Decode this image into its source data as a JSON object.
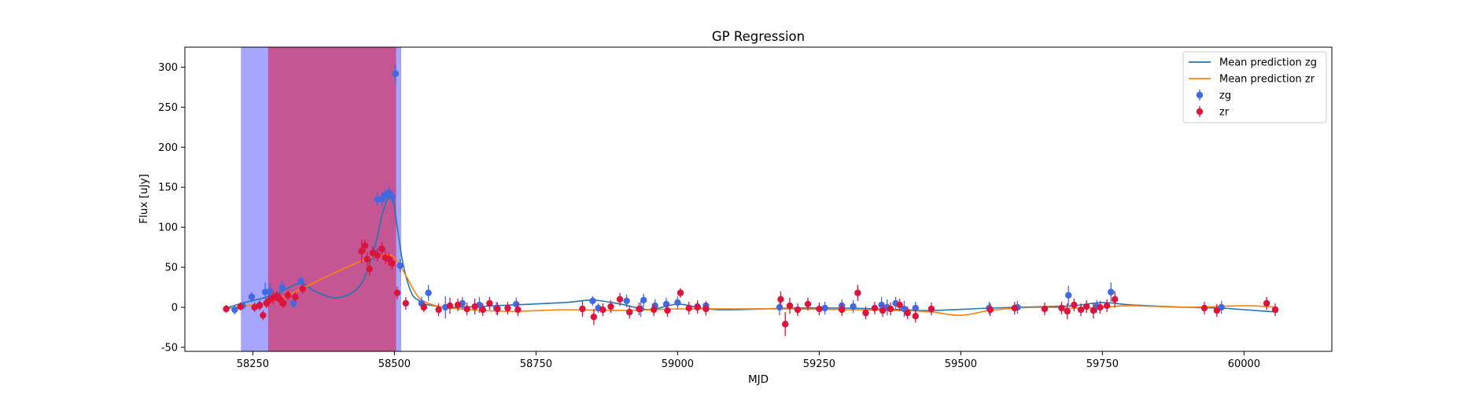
{
  "chart_data": {
    "type": "scatter",
    "title": "GP Regression",
    "xlabel": "MJD",
    "ylabel": "Flux [uJy]",
    "xlim": [
      58130,
      60155
    ],
    "ylim": [
      -55,
      325
    ],
    "xticks": [
      58250,
      58500,
      58750,
      59000,
      59250,
      59500,
      59750,
      60000
    ],
    "yticks": [
      -50,
      0,
      50,
      100,
      150,
      200,
      250,
      300
    ],
    "legend_position": "top-right",
    "spans": [
      {
        "band": "zg",
        "x": [
          58229,
          58512
        ],
        "color": "#0000ff",
        "opacity": 0.35
      },
      {
        "band": "zr",
        "x": [
          58277,
          58503
        ],
        "color": "#dc143c",
        "opacity": 0.55
      }
    ],
    "series": [
      {
        "name": "Mean prediction zg",
        "kind": "line",
        "color": "#1f77b4",
        "x": [
          58200,
          58230,
          58270,
          58300,
          58335,
          58360,
          58400,
          58440,
          58465,
          58480,
          58495,
          58505,
          58515,
          58530,
          58545,
          58560,
          58600,
          58680,
          58800,
          58850,
          58900,
          58950,
          59000,
          59050,
          59100,
          59200,
          59300,
          59400,
          59450,
          59550,
          59650,
          59700,
          59750,
          59800,
          59900,
          59960,
          60000,
          60060
        ],
        "y": [
          -2,
          5,
          12,
          20,
          30,
          20,
          12,
          28,
          75,
          120,
          140,
          100,
          55,
          18,
          8,
          3,
          0,
          2,
          6,
          9,
          4,
          -3,
          4,
          -2,
          -3,
          -1,
          -1,
          -3,
          -4,
          -1,
          1,
          2,
          6,
          3,
          0,
          -1,
          -3,
          -6
        ]
      },
      {
        "name": "Mean prediction zr",
        "kind": "line",
        "color": "#ff7f0e",
        "x": [
          58200,
          58250,
          58300,
          58350,
          58400,
          58450,
          58480,
          58500,
          58520,
          58540,
          58560,
          58600,
          58700,
          58800,
          58900,
          59000,
          59100,
          59200,
          59300,
          59400,
          59450,
          59500,
          59550,
          59600,
          59650,
          59700,
          59750,
          59800,
          59900,
          60000,
          60060
        ],
        "y": [
          -2,
          3,
          12,
          28,
          45,
          60,
          66,
          62,
          40,
          15,
          5,
          -1,
          -5,
          -3,
          -4,
          -2,
          -2,
          -2,
          -3,
          -4,
          -6,
          -10,
          -4,
          -1,
          0,
          -1,
          0,
          2,
          0,
          2,
          0
        ]
      },
      {
        "name": "zg",
        "kind": "errorbar",
        "color": "#4169e1",
        "x": [
          58218,
          58232,
          58248,
          58262,
          58272,
          58280,
          58302,
          58322,
          58335,
          58465,
          58470,
          58478,
          58483,
          58490,
          58496,
          58502,
          58510,
          58548,
          58560,
          58590,
          58620,
          58650,
          58680,
          58715,
          58850,
          58860,
          58910,
          58935,
          58940,
          58960,
          58980,
          59000,
          59035,
          59050,
          59180,
          59260,
          59290,
          59310,
          59360,
          59370,
          59385,
          59400,
          59420,
          59550,
          59600,
          59690,
          59740,
          59765,
          59960
        ],
        "y": [
          -3,
          2,
          13,
          3,
          19,
          20,
          25,
          5,
          33,
          68,
          135,
          135,
          140,
          143,
          138,
          292,
          52,
          5,
          18,
          0,
          5,
          3,
          -1,
          4,
          8,
          -1,
          8,
          -2,
          9,
          2,
          4,
          6,
          1,
          2,
          0,
          -1,
          2,
          1,
          3,
          0,
          5,
          -2,
          -1,
          -1,
          0,
          15,
          1,
          19,
          0
        ],
        "yerr": [
          6,
          5,
          6,
          6,
          12,
          10,
          8,
          6,
          6,
          10,
          8,
          8,
          8,
          8,
          8,
          12,
          8,
          8,
          10,
          14,
          8,
          10,
          8,
          8,
          6,
          6,
          8,
          10,
          8,
          8,
          8,
          8,
          8,
          6,
          10,
          8,
          8,
          8,
          10,
          10,
          8,
          10,
          8,
          8,
          8,
          12,
          8,
          12,
          8
        ]
      },
      {
        "name": "zr",
        "kind": "errorbar",
        "color": "#dc143c",
        "x": [
          58203,
          58228,
          58253,
          58262,
          58268,
          58274,
          58278,
          58286,
          58292,
          58298,
          58304,
          58312,
          58325,
          58338,
          58442,
          58448,
          58452,
          58456,
          58462,
          58470,
          58478,
          58484,
          58490,
          58496,
          58505,
          58520,
          58552,
          58578,
          58598,
          58612,
          58628,
          58642,
          58656,
          58668,
          58682,
          58700,
          58718,
          58832,
          58852,
          58868,
          58882,
          58898,
          58915,
          58932,
          58958,
          58982,
          59005,
          59020,
          59035,
          59050,
          59182,
          59190,
          59198,
          59212,
          59230,
          59250,
          59290,
          59318,
          59332,
          59348,
          59362,
          59376,
          59392,
          59406,
          59420,
          59448,
          59552,
          59595,
          59648,
          59678,
          59688,
          59700,
          59712,
          59722,
          59734,
          59746,
          59758,
          59772,
          59930,
          59952,
          60040,
          60055
        ],
        "y": [
          -2,
          1,
          0,
          2,
          -10,
          5,
          8,
          12,
          14,
          10,
          5,
          15,
          13,
          23,
          70,
          77,
          60,
          48,
          68,
          65,
          73,
          62,
          60,
          55,
          18,
          5,
          0,
          -3,
          2,
          3,
          -2,
          1,
          -3,
          5,
          -2,
          -1,
          -3,
          -2,
          -12,
          -3,
          1,
          10,
          -6,
          -2,
          -3,
          -4,
          18,
          -1,
          0,
          -2,
          10,
          -21,
          2,
          -3,
          4,
          -2,
          -3,
          18,
          -7,
          -1,
          -4,
          -2,
          3,
          -7,
          -11,
          -2,
          -3,
          -1,
          -2,
          -1,
          -5,
          3,
          -3,
          1,
          -4,
          0,
          2,
          10,
          -1,
          -4,
          5,
          -3
        ],
        "yerr": [
          5,
          5,
          6,
          6,
          6,
          6,
          8,
          8,
          6,
          8,
          6,
          6,
          6,
          6,
          15,
          8,
          8,
          8,
          8,
          8,
          8,
          8,
          8,
          8,
          8,
          8,
          6,
          8,
          10,
          8,
          8,
          10,
          8,
          8,
          8,
          8,
          8,
          10,
          10,
          8,
          8,
          8,
          8,
          8,
          8,
          8,
          6,
          8,
          8,
          8,
          10,
          15,
          10,
          8,
          8,
          8,
          8,
          10,
          8,
          8,
          8,
          8,
          8,
          8,
          8,
          8,
          8,
          8,
          8,
          8,
          10,
          8,
          8,
          8,
          10,
          8,
          8,
          10,
          8,
          8,
          8,
          8
        ]
      }
    ]
  }
}
